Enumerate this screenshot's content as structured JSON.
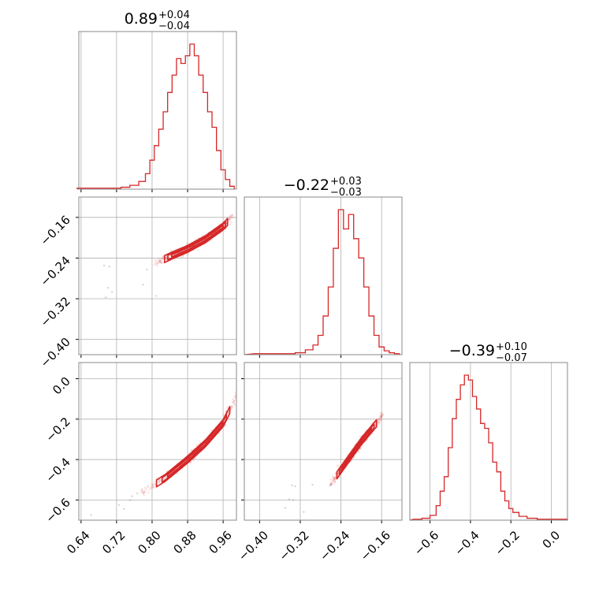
{
  "chart_data": {
    "type": "corner",
    "color": "#d62728",
    "grid": true,
    "titles": [
      {
        "value": "0.89",
        "plus": "+0.04",
        "minus": "−0.04"
      },
      {
        "value": "−0.22",
        "plus": "+0.03",
        "minus": "−0.03"
      },
      {
        "value": "−0.39",
        "plus": "+0.10",
        "minus": "−0.07"
      }
    ],
    "params": [
      {
        "range": [
          0.635,
          0.99
        ],
        "ticks": [
          0.64,
          0.72,
          0.8,
          0.88,
          0.96
        ],
        "tick_labels": [
          "0.64",
          "0.72",
          "0.80",
          "0.88",
          "0.96"
        ]
      },
      {
        "range": [
          -0.43,
          -0.12
        ],
        "ticks": [
          -0.4,
          -0.32,
          -0.24,
          -0.16
        ],
        "tick_labels": [
          "−0.40",
          "−0.32",
          "−0.24",
          "−0.16"
        ]
      },
      {
        "range": [
          -0.7,
          0.08
        ],
        "ticks": [
          -0.6,
          -0.4,
          -0.2,
          0.0
        ],
        "tick_labels": [
          "−0.6",
          "−0.4",
          "−0.2",
          "0.0"
        ]
      }
    ],
    "histograms": [
      {
        "x": [
          0.64,
          0.66,
          0.68,
          0.7,
          0.72,
          0.74,
          0.76,
          0.78,
          0.79,
          0.8,
          0.81,
          0.82,
          0.83,
          0.84,
          0.85,
          0.86,
          0.87,
          0.88,
          0.89,
          0.9,
          0.91,
          0.92,
          0.93,
          0.94,
          0.95,
          0.96,
          0.97,
          0.98
        ],
        "counts": [
          1,
          1,
          1,
          1,
          1,
          2,
          4,
          8,
          16,
          30,
          45,
          62,
          80,
          100,
          118,
          135,
          130,
          138,
          150,
          138,
          118,
          100,
          80,
          64,
          40,
          20,
          10,
          3
        ]
      },
      {
        "x": [
          -0.4,
          -0.38,
          -0.36,
          -0.34,
          -0.32,
          -0.3,
          -0.29,
          -0.28,
          -0.27,
          -0.26,
          -0.25,
          -0.24,
          -0.23,
          -0.22,
          -0.21,
          -0.2,
          -0.19,
          -0.18,
          -0.17,
          -0.16,
          -0.15,
          -0.14,
          -0.13
        ],
        "counts": [
          1,
          1,
          1,
          1,
          2,
          5,
          10,
          20,
          40,
          70,
          110,
          150,
          130,
          145,
          120,
          100,
          70,
          40,
          20,
          8,
          4,
          2,
          1
        ]
      },
      {
        "x": [
          -0.66,
          -0.62,
          -0.58,
          -0.56,
          -0.54,
          -0.52,
          -0.5,
          -0.48,
          -0.46,
          -0.44,
          -0.42,
          -0.4,
          -0.38,
          -0.36,
          -0.34,
          -0.32,
          -0.3,
          -0.28,
          -0.26,
          -0.24,
          -0.22,
          -0.2,
          -0.18,
          -0.14,
          -0.1,
          -0.04,
          0.02,
          0.06
        ],
        "counts": [
          1,
          2,
          5,
          15,
          30,
          45,
          75,
          105,
          125,
          140,
          150,
          145,
          128,
          115,
          100,
          95,
          80,
          60,
          50,
          30,
          20,
          12,
          8,
          4,
          2,
          1,
          1,
          1
        ]
      }
    ],
    "scatter_2d": [
      {
        "x_param": 0,
        "y_param": 1,
        "curve": [
          [
            0.81,
            -0.25
          ],
          [
            0.84,
            -0.237
          ],
          [
            0.88,
            -0.222
          ],
          [
            0.92,
            -0.203
          ],
          [
            0.96,
            -0.178
          ],
          [
            0.98,
            -0.16
          ]
        ]
      },
      {
        "x_param": 0,
        "y_param": 2,
        "curve": [
          [
            0.78,
            -0.56
          ],
          [
            0.83,
            -0.49
          ],
          [
            0.88,
            -0.4
          ],
          [
            0.92,
            -0.32
          ],
          [
            0.96,
            -0.22
          ],
          [
            0.99,
            -0.09
          ]
        ]
      },
      {
        "x_param": 1,
        "y_param": 2,
        "curve": [
          [
            -0.26,
            -0.52
          ],
          [
            -0.24,
            -0.45
          ],
          [
            -0.22,
            -0.38
          ],
          [
            -0.2,
            -0.31
          ],
          [
            -0.18,
            -0.25
          ],
          [
            -0.16,
            -0.19
          ]
        ]
      }
    ]
  }
}
